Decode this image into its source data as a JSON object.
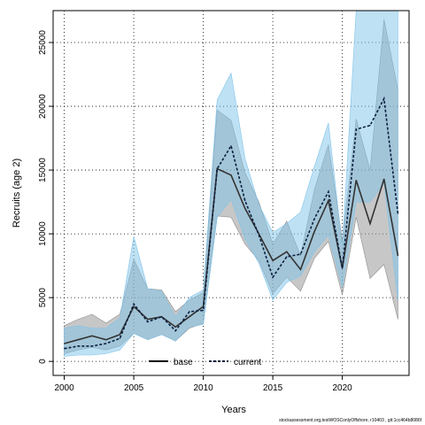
{
  "chart_data": {
    "type": "line",
    "xlabel": "Years",
    "ylabel": "Recruits (age 2)",
    "xlim": [
      1999.2,
      2024.8
    ],
    "ylim": [
      -1100,
      27500
    ],
    "x_ticks": [
      "2000",
      "2005",
      "2010",
      "2015",
      "2020"
    ],
    "y_ticks": [
      "0",
      "5000",
      "10000",
      "15000",
      "20000",
      "25000"
    ],
    "grid": true,
    "legend_position": "bottom",
    "x": [
      2000,
      2001,
      2002,
      2003,
      2004,
      2005,
      2006,
      2007,
      2008,
      2009,
      2010,
      2011,
      2012,
      2013,
      2014,
      2015,
      2016,
      2017,
      2018,
      2019,
      2020,
      2021,
      2022,
      2023,
      2024
    ],
    "series": [
      {
        "name": "base",
        "color": "#333333",
        "band_color": "#8f8f8f",
        "line_style": "solid",
        "values": [
          1400,
          1700,
          2000,
          1700,
          2100,
          4300,
          3300,
          3500,
          2700,
          3500,
          4300,
          15100,
          14600,
          12000,
          10000,
          7900,
          8600,
          7200,
          10200,
          12600,
          7300,
          14200,
          10800,
          14300,
          8300
        ],
        "upper": [
          2800,
          3300,
          3700,
          3000,
          3700,
          8000,
          5700,
          5600,
          3900,
          4800,
          5400,
          19700,
          18900,
          14800,
          12500,
          9200,
          11000,
          8300,
          13500,
          17000,
          9500,
          19000,
          15000,
          26800,
          21300
        ],
        "lower": [
          600,
          900,
          1100,
          900,
          1200,
          2200,
          1700,
          2100,
          1600,
          2600,
          3000,
          11400,
          11300,
          9200,
          7900,
          5300,
          6600,
          5500,
          8100,
          9400,
          5200,
          11300,
          6500,
          7600,
          3300
        ]
      },
      {
        "name": "current",
        "color": "#0b1f3f",
        "band_color": "#7fc4ea",
        "line_style": "dashed",
        "values": [
          1000,
          1200,
          1200,
          1400,
          1800,
          4500,
          3100,
          3500,
          2400,
          3900,
          4000,
          15100,
          16900,
          12600,
          9900,
          6600,
          8200,
          8400,
          11200,
          13300,
          7300,
          18200,
          18500,
          20600,
          11600
        ],
        "upper": [
          2600,
          2800,
          2600,
          2600,
          3400,
          9800,
          5700,
          5500,
          3500,
          5000,
          5600,
          20500,
          22600,
          15900,
          12300,
          10100,
          10800,
          11700,
          15300,
          18700,
          9000,
          27500,
          27500,
          27500,
          27500
        ],
        "lower": [
          400,
          500,
          500,
          600,
          900,
          2200,
          1700,
          2100,
          1600,
          2700,
          2900,
          11300,
          12700,
          9600,
          7700,
          4800,
          6200,
          6700,
          8600,
          9900,
          5800,
          12500,
          12500,
          14000,
          4800
        ]
      }
    ]
  },
  "footer_text": "stockassessment.org,testWOSConlyOffshore, r10403 , git:1cc464b8086f"
}
